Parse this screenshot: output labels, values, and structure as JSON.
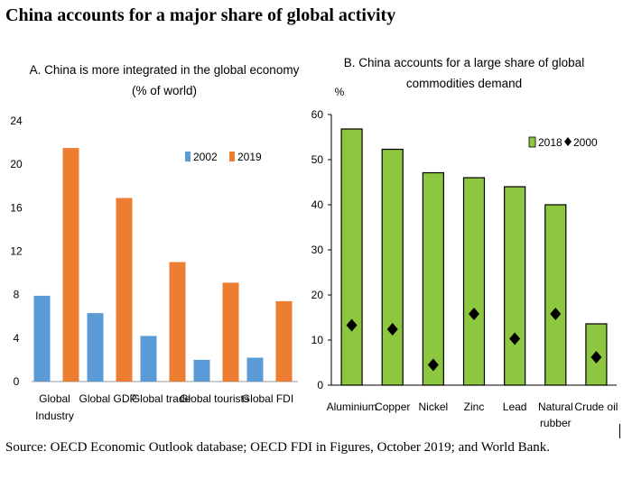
{
  "title": "China accounts for a major share of global activity",
  "source": "Source: OECD Economic Outlook database; OECD FDI in Figures, October 2019; and World Bank.",
  "chart_data": [
    {
      "type": "bar",
      "title_lines": [
        "A. China is more integrated in the global economy",
        "(% of world)"
      ],
      "categories": [
        [
          "Global",
          "Industry"
        ],
        [
          "Global GDP"
        ],
        [
          "Global trade"
        ],
        [
          "Global tourists"
        ],
        [
          "Global FDI"
        ]
      ],
      "series": [
        {
          "name": "2002",
          "values": [
            7.9,
            6.3,
            4.2,
            2.0,
            2.2
          ],
          "color": "#5b9bd5"
        },
        {
          "name": "2019",
          "values": [
            21.5,
            16.9,
            11.0,
            9.1,
            7.4
          ],
          "color": "#ed7d31"
        }
      ],
      "yticks": [
        0,
        4,
        8,
        12,
        16,
        20,
        24
      ],
      "ylim": [
        0,
        24
      ],
      "ylabel": "",
      "legend_position": "top-right"
    },
    {
      "type": "bar",
      "title_lines": [
        "B. China accounts for a large share of global",
        "commodities demand"
      ],
      "ylabel": "%",
      "categories": [
        [
          "Aluminium"
        ],
        [
          "Copper"
        ],
        [
          "Nickel"
        ],
        [
          "Zinc"
        ],
        [
          "Lead"
        ],
        [
          "Natural",
          "rubber"
        ],
        [
          "Crude oil"
        ]
      ],
      "series": [
        {
          "name": "2018",
          "type": "bar",
          "values": [
            56.8,
            52.3,
            47.1,
            46.0,
            44.0,
            40.0,
            13.6
          ],
          "color": "#8dc63f"
        },
        {
          "name": "2000",
          "type": "marker",
          "values": [
            13.3,
            12.4,
            4.5,
            15.8,
            10.3,
            15.8,
            6.2
          ],
          "color": "#000000"
        }
      ],
      "yticks": [
        0,
        10,
        20,
        30,
        40,
        50,
        60
      ],
      "ylim": [
        0,
        60
      ],
      "legend_position": "top-right"
    }
  ]
}
